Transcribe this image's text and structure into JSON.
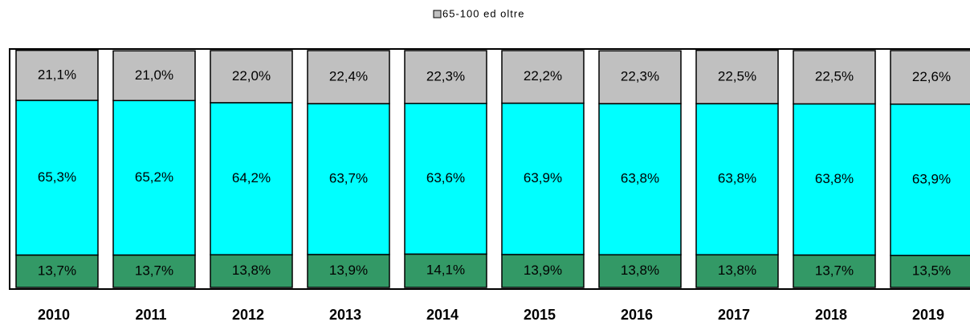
{
  "chart_data": {
    "type": "stacked_bar",
    "categories": [
      "2010",
      "2011",
      "2012",
      "2013",
      "2014",
      "2015",
      "2016",
      "2017",
      "2018",
      "2019"
    ],
    "ylim": [
      0,
      100
    ],
    "series": [
      {
        "color": "#339966",
        "values": [
          13.7,
          13.7,
          13.8,
          13.9,
          14.1,
          13.9,
          13.8,
          13.8,
          13.7,
          13.5
        ],
        "value_labels": [
          "13,7%",
          "13,7%",
          "13,8%",
          "13,9%",
          "14,1%",
          "13,9%",
          "13,8%",
          "13,8%",
          "13,7%",
          "13,5%"
        ]
      },
      {
        "color": "#00ffff",
        "values": [
          65.3,
          65.2,
          64.2,
          63.7,
          63.6,
          63.9,
          63.8,
          63.8,
          63.8,
          63.9
        ],
        "value_labels": [
          "65,3%",
          "65,2%",
          "64,2%",
          "63,7%",
          "63,6%",
          "63,9%",
          "63,8%",
          "63,8%",
          "63,8%",
          "63,9%"
        ]
      },
      {
        "name": "65-100 ed oltre",
        "color": "#c0c0c0",
        "values": [
          21.1,
          21.0,
          22.0,
          22.4,
          22.3,
          22.2,
          22.3,
          22.5,
          22.5,
          22.6
        ],
        "value_labels": [
          "21,1%",
          "21,0%",
          "22,0%",
          "22,4%",
          "22,3%",
          "22,2%",
          "22,3%",
          "22,5%",
          "22,5%",
          "22,6%"
        ]
      }
    ]
  }
}
